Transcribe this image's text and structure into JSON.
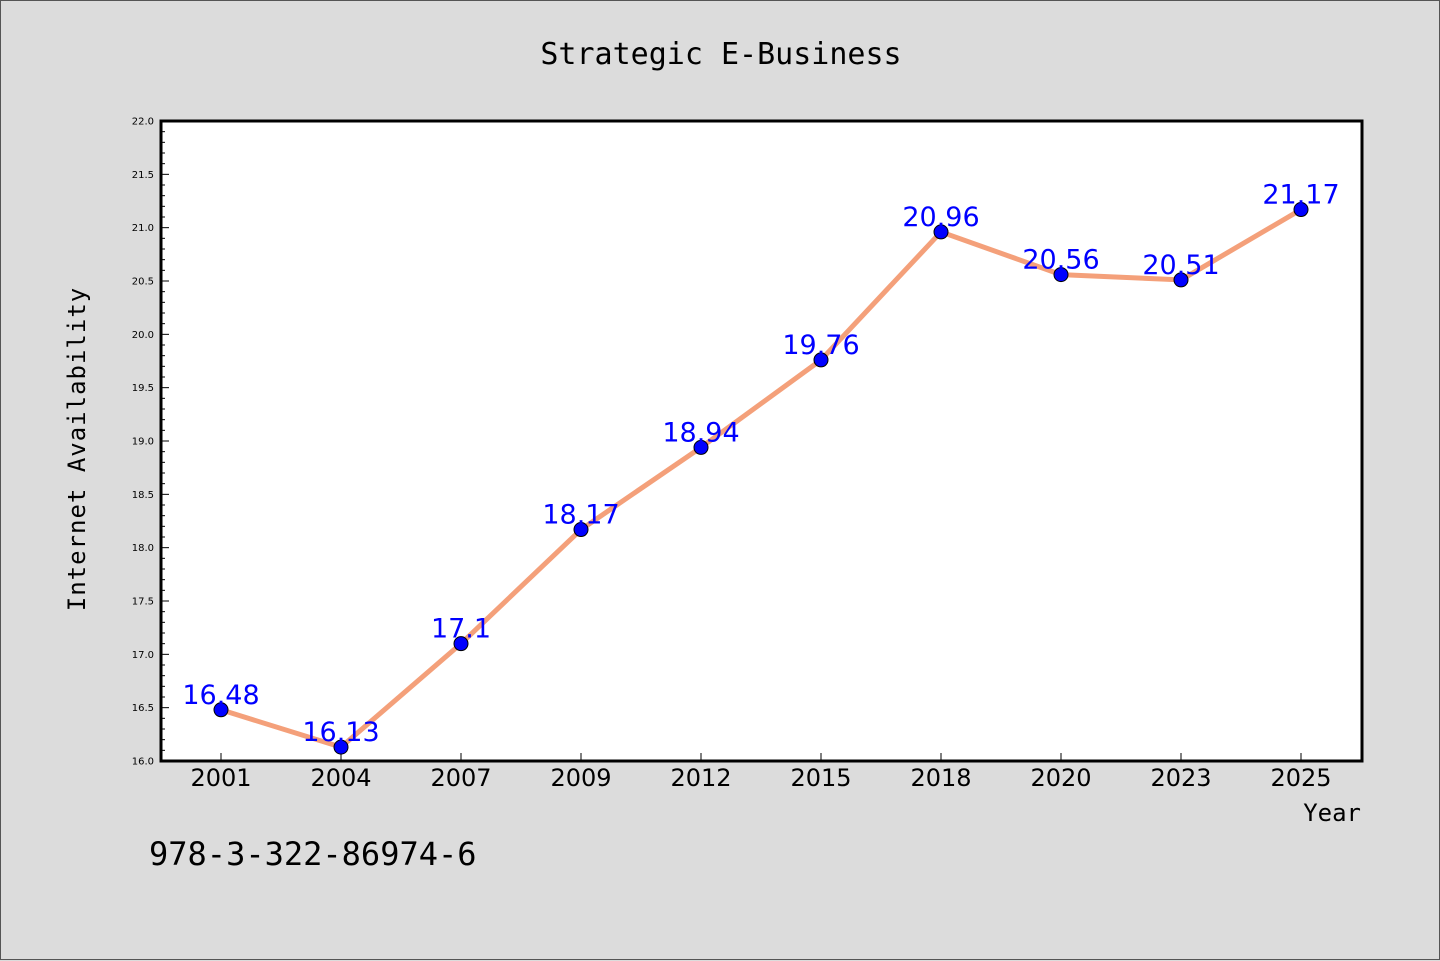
{
  "chart_data": {
    "type": "line",
    "title": "Strategic E-Business",
    "xlabel": "Year",
    "ylabel": "Internet Availability",
    "ylim": [
      16.0,
      22.0
    ],
    "yticks": [
      "16.0",
      "16.5",
      "17.0",
      "17.5",
      "18.0",
      "18.5",
      "19.0",
      "19.5",
      "20.0",
      "20.5",
      "21.0",
      "21.5",
      "22.0"
    ],
    "categories": [
      "2001",
      "2004",
      "2007",
      "2009",
      "2012",
      "2015",
      "2018",
      "2020",
      "2023",
      "2025"
    ],
    "series": [
      {
        "values": [
          16.48,
          16.13,
          17.1,
          18.17,
          18.94,
          19.76,
          20.96,
          20.56,
          20.51,
          21.17
        ],
        "labels": [
          "16.48",
          "16.13",
          "17.1",
          "18.17",
          "18.94",
          "19.76",
          "20.96",
          "20.56",
          "20.51",
          "21.17"
        ]
      }
    ],
    "grid": false,
    "colors": {
      "line": "#f4a07a",
      "marker": "#0000ff",
      "data_label": "#0000ff",
      "plot_background": "#ffffff",
      "figure_background": "#dcdcdc"
    }
  },
  "footer": {
    "text": "978-3-322-86974-6"
  }
}
